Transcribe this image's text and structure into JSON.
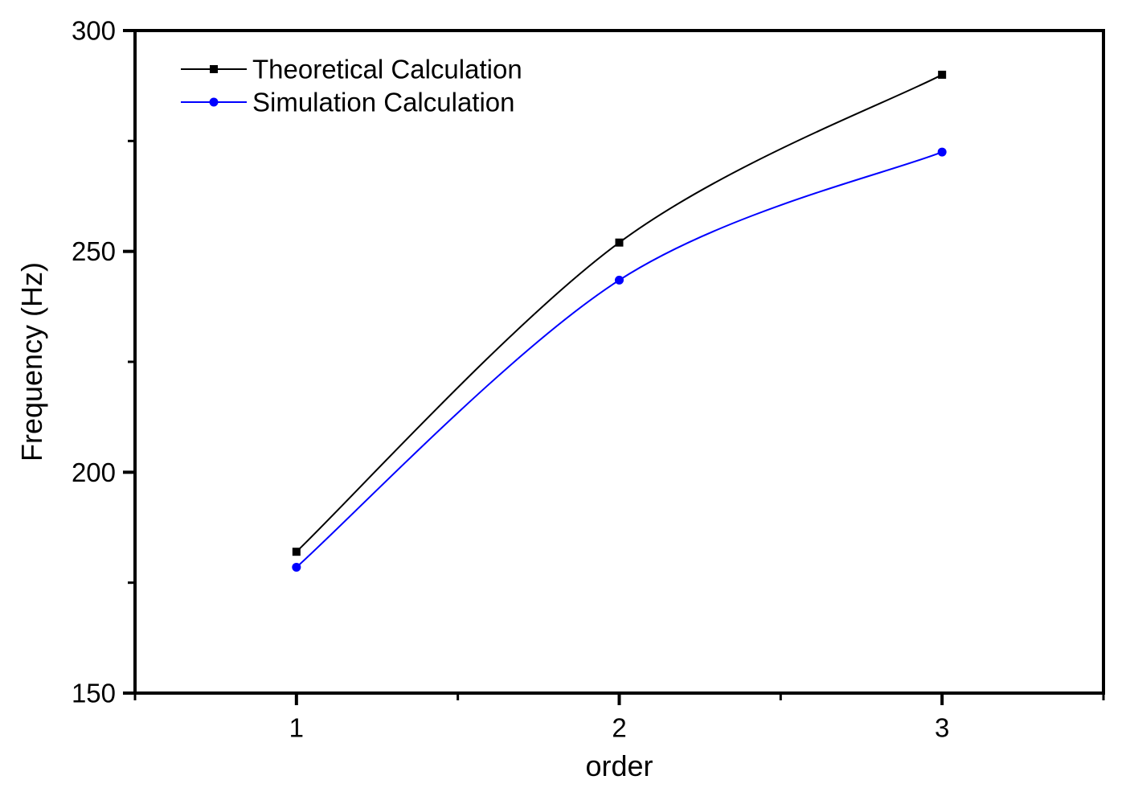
{
  "chart_data": {
    "type": "line",
    "title": "",
    "xlabel": "order",
    "ylabel": "Frequency (Hz)",
    "x": [
      1,
      2,
      3
    ],
    "series": [
      {
        "name": "Theoretical Calculation",
        "color": "#000000",
        "marker": "square",
        "values": [
          182,
          252,
          290
        ]
      },
      {
        "name": "Simulation Calculation",
        "color": "#0000ff",
        "marker": "circle",
        "values": [
          178.5,
          243.5,
          272.5
        ]
      }
    ],
    "xlim": [
      0.5,
      3.5
    ],
    "ylim": [
      150,
      300
    ],
    "xticks_major": [
      1,
      2,
      3
    ],
    "xticks_minor": [
      0.5,
      1.5,
      2.5,
      3.5
    ],
    "yticks_major": [
      150,
      200,
      250,
      300
    ],
    "yticks_minor": [
      175,
      225,
      275
    ],
    "grid": false,
    "smooth_lines": true,
    "legend_position": "top-left-inside",
    "background_color": "#ffffff",
    "axis_color": "#000000"
  }
}
